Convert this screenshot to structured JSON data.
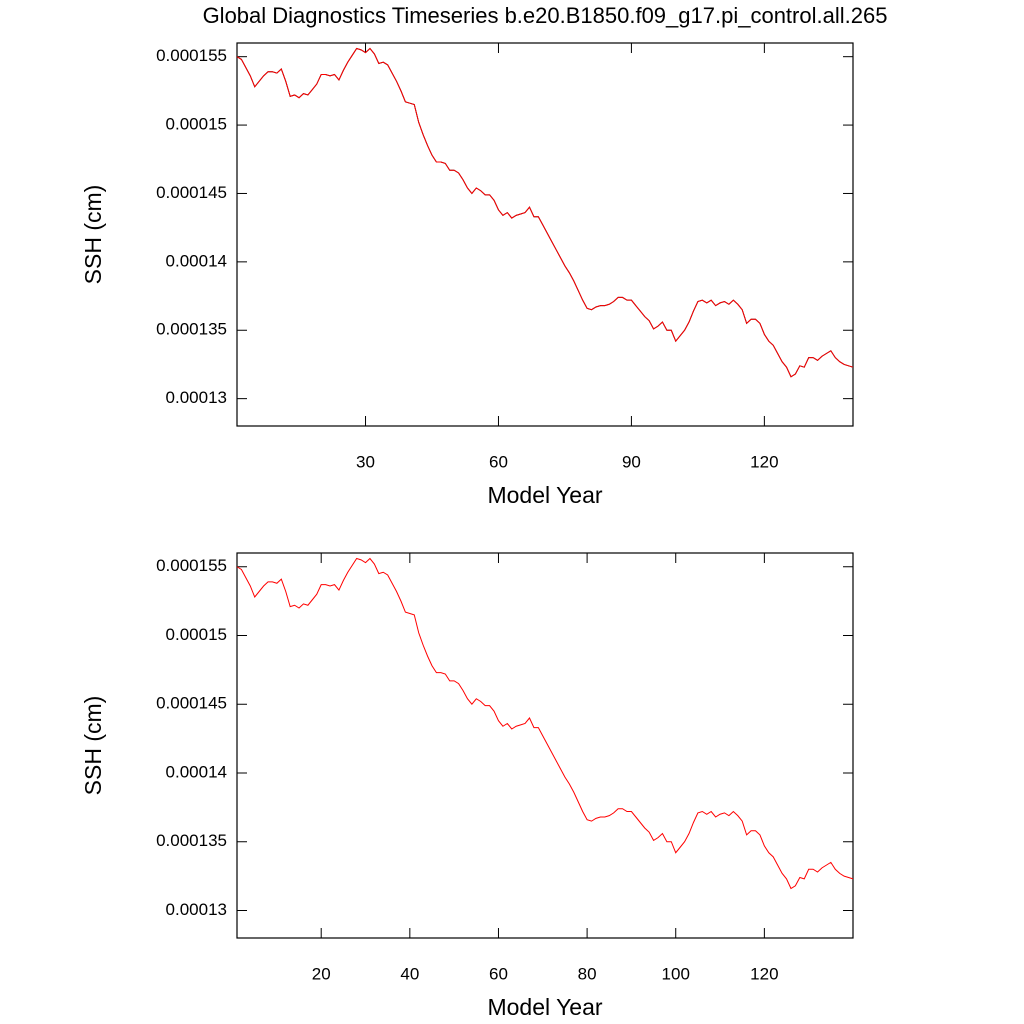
{
  "chart_data": [
    {
      "type": "line",
      "title": "Global Diagnostics Timeseries b.e20.B1850.f09_g17.pi_control.all.265",
      "xlabel": "Model Year",
      "ylabel": "SSH (cm)",
      "xlim": [
        1,
        140
      ],
      "ylim": [
        0.000128,
        0.000156
      ],
      "xticks": [
        30,
        60,
        90,
        120
      ],
      "yticks": [
        0.00013,
        0.000135,
        0.00014,
        0.000145,
        0.00015,
        0.000155
      ],
      "x": [
        1,
        2,
        3,
        4,
        5,
        6,
        7,
        8,
        9,
        10,
        11,
        12,
        13,
        14,
        15,
        16,
        17,
        18,
        19,
        20,
        21,
        22,
        23,
        24,
        25,
        26,
        27,
        28,
        29,
        30,
        31,
        32,
        33,
        34,
        35,
        36,
        37,
        38,
        39,
        40,
        41,
        42,
        43,
        44,
        45,
        46,
        47,
        48,
        49,
        50,
        51,
        52,
        53,
        54,
        55,
        56,
        57,
        58,
        59,
        60,
        61,
        62,
        63,
        64,
        65,
        66,
        67,
        68,
        69,
        70,
        71,
        72,
        73,
        74,
        75,
        76,
        77,
        78,
        79,
        80,
        81,
        82,
        83,
        84,
        85,
        86,
        87,
        88,
        89,
        90,
        91,
        92,
        93,
        94,
        95,
        96,
        97,
        98,
        99,
        100,
        101,
        102,
        103,
        104,
        105,
        106,
        107,
        108,
        109,
        110,
        111,
        112,
        113,
        114,
        115,
        116,
        117,
        118,
        119,
        120,
        121,
        122,
        123,
        124,
        125,
        126,
        127,
        128,
        129,
        130,
        131,
        132,
        133,
        134,
        135,
        136,
        137,
        138,
        139,
        140
      ],
      "series": [
        {
          "color": "#000000",
          "values": [
            0.000155,
            0.0001548,
            0.0001542,
            0.0001536,
            0.0001528,
            0.0001532,
            0.0001536,
            0.0001539,
            0.0001539,
            0.0001538,
            0.0001541,
            0.0001532,
            0.0001521,
            0.0001522,
            0.000152,
            0.0001523,
            0.0001522,
            0.0001526,
            0.000153,
            0.0001537,
            0.0001537,
            0.0001536,
            0.0001537,
            0.0001533,
            0.000154,
            0.0001546,
            0.0001551,
            0.0001556,
            0.0001555,
            0.0001553,
            0.0001556,
            0.0001552,
            0.0001545,
            0.0001546,
            0.0001544,
            0.0001538,
            0.0001532,
            0.0001525,
            0.0001517,
            0.0001516,
            0.0001515,
            0.0001502,
            0.0001493,
            0.0001485,
            0.0001478,
            0.0001473,
            0.0001473,
            0.0001472,
            0.0001467,
            0.0001467,
            0.0001465,
            0.000146,
            0.0001454,
            0.000145,
            0.0001454,
            0.0001452,
            0.0001449,
            0.0001449,
            0.0001445,
            0.0001438,
            0.0001434,
            0.0001436,
            0.0001432,
            0.0001434,
            0.0001435,
            0.0001436,
            0.000144,
            0.0001433,
            0.0001433,
            0.0001427,
            0.0001421,
            0.0001415,
            0.0001409,
            0.0001403,
            0.0001397,
            0.0001392,
            0.0001386,
            0.0001379,
            0.0001372,
            0.0001366,
            0.0001365,
            0.0001367,
            0.0001368,
            0.0001368,
            0.0001369,
            0.0001371,
            0.0001374,
            0.0001374,
            0.0001372,
            0.0001372,
            0.0001368,
            0.0001364,
            0.000136,
            0.0001357,
            0.0001351,
            0.0001353,
            0.0001356,
            0.000135,
            0.000135,
            0.0001342,
            0.0001346,
            0.000135,
            0.0001356,
            0.0001364,
            0.0001371,
            0.0001372,
            0.000137,
            0.0001372,
            0.0001368,
            0.000137,
            0.0001371,
            0.0001369,
            0.0001372,
            0.0001369,
            0.0001365,
            0.0001355,
            0.0001358,
            0.0001358,
            0.0001355,
            0.0001347,
            0.0001342,
            0.0001339,
            0.0001333,
            0.0001327,
            0.0001323,
            0.0001316,
            0.0001318,
            0.0001324,
            0.0001323,
            0.000133,
            0.000133,
            0.0001328,
            0.0001331,
            0.0001333,
            0.0001335,
            0.000133,
            0.0001327,
            0.0001325,
            0.0001324,
            0.0001323
          ]
        },
        {
          "color": "#ff0000",
          "values": [
            0.000155,
            0.0001548,
            0.0001542,
            0.0001536,
            0.0001528,
            0.0001532,
            0.0001536,
            0.0001539,
            0.0001539,
            0.0001538,
            0.0001541,
            0.0001532,
            0.0001521,
            0.0001522,
            0.000152,
            0.0001523,
            0.0001522,
            0.0001526,
            0.000153,
            0.0001537,
            0.0001537,
            0.0001536,
            0.0001537,
            0.0001533,
            0.000154,
            0.0001546,
            0.0001551,
            0.0001556,
            0.0001555,
            0.0001553,
            0.0001556,
            0.0001552,
            0.0001545,
            0.0001546,
            0.0001544,
            0.0001538,
            0.0001532,
            0.0001525,
            0.0001517,
            0.0001516,
            0.0001515,
            0.0001502,
            0.0001493,
            0.0001485,
            0.0001478,
            0.0001473,
            0.0001473,
            0.0001472,
            0.0001467,
            0.0001467,
            0.0001465,
            0.000146,
            0.0001454,
            0.000145,
            0.0001454,
            0.0001452,
            0.0001449,
            0.0001449,
            0.0001445,
            0.0001438,
            0.0001434,
            0.0001436,
            0.0001432,
            0.0001434,
            0.0001435,
            0.0001436,
            0.000144,
            0.0001433,
            0.0001433,
            0.0001427,
            0.0001421,
            0.0001415,
            0.0001409,
            0.0001403,
            0.0001397,
            0.0001392,
            0.0001386,
            0.0001379,
            0.0001372,
            0.0001366,
            0.0001365,
            0.0001367,
            0.0001368,
            0.0001368,
            0.0001369,
            0.0001371,
            0.0001374,
            0.0001374,
            0.0001372,
            0.0001372,
            0.0001368,
            0.0001364,
            0.000136,
            0.0001357,
            0.0001351,
            0.0001353,
            0.0001356,
            0.000135,
            0.000135,
            0.0001342,
            0.0001346,
            0.000135,
            0.0001356,
            0.0001364,
            0.0001371,
            0.0001372,
            0.000137,
            0.0001372,
            0.0001368,
            0.000137,
            0.0001371,
            0.0001369,
            0.0001372,
            0.0001369,
            0.0001365,
            0.0001355,
            0.0001358,
            0.0001358,
            0.0001355,
            0.0001347,
            0.0001342,
            0.0001339,
            0.0001333,
            0.0001327,
            0.0001323,
            0.0001316,
            0.0001318,
            0.0001324,
            0.0001323,
            0.000133,
            0.000133,
            0.0001328,
            0.0001331,
            0.0001333,
            0.0001335,
            0.000133,
            0.0001327,
            0.0001325,
            0.0001324,
            0.0001323
          ]
        }
      ]
    },
    {
      "type": "line",
      "xlabel": "Model Year",
      "ylabel": "SSH (cm)",
      "xlim": [
        1,
        140
      ],
      "ylim": [
        0.000128,
        0.000156
      ],
      "xticks": [
        20,
        40,
        60,
        80,
        100,
        120
      ],
      "yticks": [
        0.00013,
        0.000135,
        0.00014,
        0.000145,
        0.00015,
        0.000155
      ],
      "x": [
        1,
        2,
        3,
        4,
        5,
        6,
        7,
        8,
        9,
        10,
        11,
        12,
        13,
        14,
        15,
        16,
        17,
        18,
        19,
        20,
        21,
        22,
        23,
        24,
        25,
        26,
        27,
        28,
        29,
        30,
        31,
        32,
        33,
        34,
        35,
        36,
        37,
        38,
        39,
        40,
        41,
        42,
        43,
        44,
        45,
        46,
        47,
        48,
        49,
        50,
        51,
        52,
        53,
        54,
        55,
        56,
        57,
        58,
        59,
        60,
        61,
        62,
        63,
        64,
        65,
        66,
        67,
        68,
        69,
        70,
        71,
        72,
        73,
        74,
        75,
        76,
        77,
        78,
        79,
        80,
        81,
        82,
        83,
        84,
        85,
        86,
        87,
        88,
        89,
        90,
        91,
        92,
        93,
        94,
        95,
        96,
        97,
        98,
        99,
        100,
        101,
        102,
        103,
        104,
        105,
        106,
        107,
        108,
        109,
        110,
        111,
        112,
        113,
        114,
        115,
        116,
        117,
        118,
        119,
        120,
        121,
        122,
        123,
        124,
        125,
        126,
        127,
        128,
        129,
        130,
        131,
        132,
        133,
        134,
        135,
        136,
        137,
        138,
        139,
        140
      ],
      "series": [
        {
          "color": "#ff0000",
          "values": [
            0.000155,
            0.0001548,
            0.0001542,
            0.0001536,
            0.0001528,
            0.0001532,
            0.0001536,
            0.0001539,
            0.0001539,
            0.0001538,
            0.0001541,
            0.0001532,
            0.0001521,
            0.0001522,
            0.000152,
            0.0001523,
            0.0001522,
            0.0001526,
            0.000153,
            0.0001537,
            0.0001537,
            0.0001536,
            0.0001537,
            0.0001533,
            0.000154,
            0.0001546,
            0.0001551,
            0.0001556,
            0.0001555,
            0.0001553,
            0.0001556,
            0.0001552,
            0.0001545,
            0.0001546,
            0.0001544,
            0.0001538,
            0.0001532,
            0.0001525,
            0.0001517,
            0.0001516,
            0.0001515,
            0.0001502,
            0.0001493,
            0.0001485,
            0.0001478,
            0.0001473,
            0.0001473,
            0.0001472,
            0.0001467,
            0.0001467,
            0.0001465,
            0.000146,
            0.0001454,
            0.000145,
            0.0001454,
            0.0001452,
            0.0001449,
            0.0001449,
            0.0001445,
            0.0001438,
            0.0001434,
            0.0001436,
            0.0001432,
            0.0001434,
            0.0001435,
            0.0001436,
            0.000144,
            0.0001433,
            0.0001433,
            0.0001427,
            0.0001421,
            0.0001415,
            0.0001409,
            0.0001403,
            0.0001397,
            0.0001392,
            0.0001386,
            0.0001379,
            0.0001372,
            0.0001366,
            0.0001365,
            0.0001367,
            0.0001368,
            0.0001368,
            0.0001369,
            0.0001371,
            0.0001374,
            0.0001374,
            0.0001372,
            0.0001372,
            0.0001368,
            0.0001364,
            0.000136,
            0.0001357,
            0.0001351,
            0.0001353,
            0.0001356,
            0.000135,
            0.000135,
            0.0001342,
            0.0001346,
            0.000135,
            0.0001356,
            0.0001364,
            0.0001371,
            0.0001372,
            0.000137,
            0.0001372,
            0.0001368,
            0.000137,
            0.0001371,
            0.0001369,
            0.0001372,
            0.0001369,
            0.0001365,
            0.0001355,
            0.0001358,
            0.0001358,
            0.0001355,
            0.0001347,
            0.0001342,
            0.0001339,
            0.0001333,
            0.0001327,
            0.0001323,
            0.0001316,
            0.0001318,
            0.0001324,
            0.0001323,
            0.000133,
            0.000133,
            0.0001328,
            0.0001331,
            0.0001333,
            0.0001335,
            0.000133,
            0.0001327,
            0.0001325,
            0.0001324,
            0.0001323
          ]
        }
      ]
    }
  ]
}
